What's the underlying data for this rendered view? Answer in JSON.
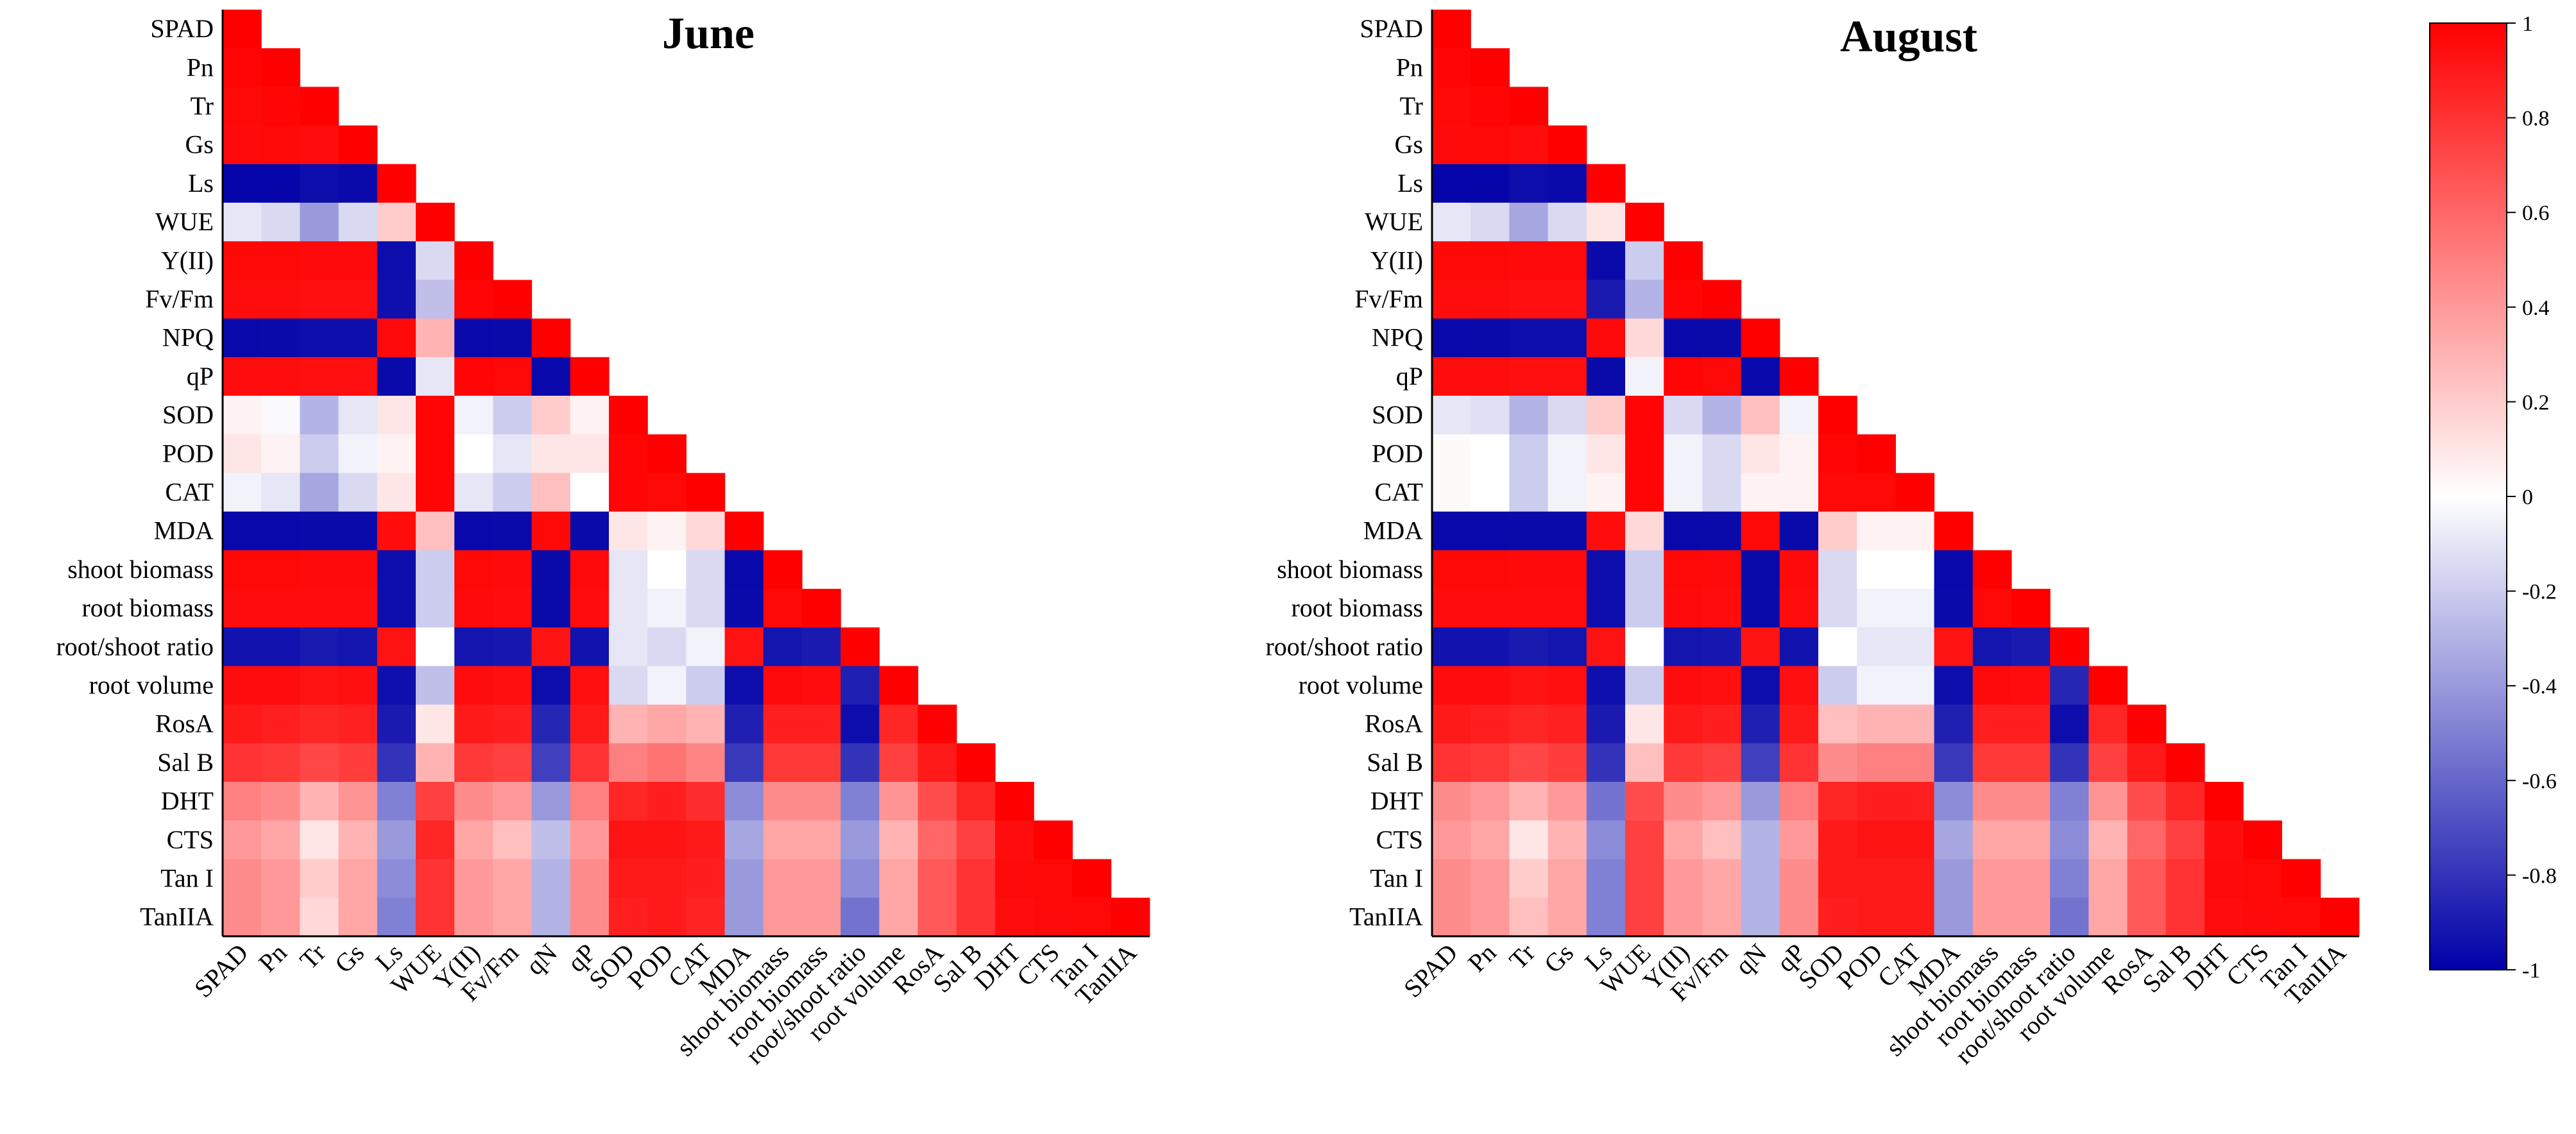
{
  "chart_data": [
    {
      "type": "heatmap",
      "title": "June",
      "shape": "lower-triangle",
      "row_labels": [
        "SPAD",
        "Pn",
        "Tr",
        "Gs",
        "Ls",
        "WUE",
        "Y(II)",
        "Fv/Fm",
        "NPQ",
        "qP",
        "SOD",
        "POD",
        "CAT",
        "MDA",
        "shoot biomass",
        "root biomass",
        "root/shoot ratio",
        "root volume",
        "RosA",
        "Sal B",
        "DHT",
        "CTS",
        "Tan I",
        "TanIIA"
      ],
      "column_labels": [
        "SPAD",
        "Pn",
        "Tr",
        "Gs",
        "Ls",
        "WUE",
        "Y(II)",
        "Fv/Fm",
        "qN",
        "qP",
        "SOD",
        "POD",
        "CAT",
        "MDA",
        "shoot biomass",
        "root biomass",
        "root/shoot ratio",
        "root volume",
        "RosA",
        "Sal B",
        "DHT",
        "CTS",
        "Tan I",
        "TanIIA"
      ],
      "value_range": [
        -1,
        1
      ],
      "values": [
        [
          1
        ],
        [
          0.98,
          1
        ],
        [
          0.97,
          0.98,
          1
        ],
        [
          0.96,
          0.97,
          0.95,
          1
        ],
        [
          -0.98,
          -0.98,
          -0.95,
          -0.96,
          1
        ],
        [
          -0.1,
          -0.15,
          -0.4,
          -0.15,
          0.2,
          1
        ],
        [
          0.97,
          0.97,
          0.96,
          0.96,
          -0.95,
          -0.15,
          1
        ],
        [
          0.95,
          0.95,
          0.94,
          0.94,
          -0.94,
          -0.25,
          0.98,
          1
        ],
        [
          -0.97,
          -0.96,
          -0.95,
          -0.95,
          0.96,
          0.3,
          -0.97,
          -0.96,
          1
        ],
        [
          0.95,
          0.95,
          0.94,
          0.94,
          -0.96,
          -0.1,
          0.98,
          0.97,
          -0.97,
          1
        ],
        [
          0.05,
          -0.02,
          -0.3,
          -0.1,
          0.1,
          0.98,
          -0.05,
          -0.2,
          0.2,
          0.05,
          1
        ],
        [
          0.1,
          0.05,
          -0.2,
          -0.05,
          0.05,
          0.98,
          0.0,
          -0.1,
          0.1,
          0.1,
          0.98,
          1
        ],
        [
          -0.05,
          -0.1,
          -0.35,
          -0.15,
          0.1,
          0.98,
          -0.1,
          -0.2,
          0.25,
          0.0,
          0.98,
          0.97,
          1
        ],
        [
          -0.97,
          -0.97,
          -0.96,
          -0.96,
          0.95,
          0.25,
          -0.97,
          -0.96,
          0.97,
          -0.96,
          0.1,
          0.05,
          0.15,
          1
        ],
        [
          0.97,
          0.97,
          0.96,
          0.96,
          -0.95,
          -0.2,
          0.97,
          0.96,
          -0.96,
          0.96,
          -0.1,
          0.0,
          -0.15,
          -0.97,
          1
        ],
        [
          0.95,
          0.95,
          0.95,
          0.95,
          -0.95,
          -0.2,
          0.96,
          0.95,
          -0.96,
          0.95,
          -0.1,
          -0.05,
          -0.15,
          -0.96,
          0.97,
          1
        ],
        [
          -0.93,
          -0.93,
          -0.9,
          -0.92,
          0.93,
          0.0,
          -0.92,
          -0.91,
          0.92,
          -0.93,
          -0.1,
          -0.15,
          -0.05,
          0.93,
          -0.92,
          -0.9,
          1
        ],
        [
          0.95,
          0.95,
          0.93,
          0.94,
          -0.94,
          -0.25,
          0.95,
          0.94,
          -0.95,
          0.94,
          -0.15,
          -0.05,
          -0.2,
          -0.95,
          0.96,
          0.95,
          -0.88,
          1
        ],
        [
          0.9,
          0.88,
          0.85,
          0.87,
          -0.9,
          0.1,
          0.9,
          0.88,
          -0.85,
          0.9,
          0.3,
          0.35,
          0.3,
          -0.88,
          0.88,
          0.88,
          -0.95,
          0.85,
          1
        ],
        [
          0.8,
          0.78,
          0.72,
          0.76,
          -0.8,
          0.3,
          0.78,
          0.75,
          -0.75,
          0.8,
          0.5,
          0.55,
          0.48,
          -0.78,
          0.78,
          0.78,
          -0.8,
          0.75,
          0.9,
          1
        ],
        [
          0.5,
          0.45,
          0.3,
          0.42,
          -0.5,
          0.75,
          0.45,
          0.4,
          -0.4,
          0.5,
          0.85,
          0.88,
          0.82,
          -0.45,
          0.45,
          0.45,
          -0.5,
          0.42,
          0.7,
          0.85,
          1
        ],
        [
          0.4,
          0.35,
          0.1,
          0.3,
          -0.4,
          0.85,
          0.35,
          0.25,
          -0.25,
          0.4,
          0.92,
          0.92,
          0.9,
          -0.35,
          0.35,
          0.35,
          -0.4,
          0.3,
          0.6,
          0.75,
          0.95,
          1
        ],
        [
          0.45,
          0.4,
          0.2,
          0.35,
          -0.45,
          0.8,
          0.4,
          0.35,
          -0.3,
          0.45,
          0.9,
          0.9,
          0.88,
          -0.4,
          0.4,
          0.4,
          -0.45,
          0.35,
          0.65,
          0.8,
          0.96,
          0.97,
          1
        ],
        [
          0.45,
          0.4,
          0.15,
          0.35,
          -0.5,
          0.8,
          0.4,
          0.35,
          -0.3,
          0.45,
          0.88,
          0.9,
          0.86,
          -0.4,
          0.4,
          0.4,
          -0.55,
          0.35,
          0.65,
          0.8,
          0.95,
          0.96,
          0.97,
          1
        ]
      ]
    },
    {
      "type": "heatmap",
      "title": "August",
      "shape": "lower-triangle",
      "row_labels": [
        "SPAD",
        "Pn",
        "Tr",
        "Gs",
        "Ls",
        "WUE",
        "Y(II)",
        "Fv/Fm",
        "NPQ",
        "qP",
        "SOD",
        "POD",
        "CAT",
        "MDA",
        "shoot biomass",
        "root biomass",
        "root/shoot ratio",
        "root volume",
        "RosA",
        "Sal B",
        "DHT",
        "CTS",
        "Tan I",
        "TanIIA"
      ],
      "column_labels": [
        "SPAD",
        "Pn",
        "Tr",
        "Gs",
        "Ls",
        "WUE",
        "Y(II)",
        "Fv/Fm",
        "qN",
        "qP",
        "SOD",
        "POD",
        "CAT",
        "MDA",
        "shoot biomass",
        "root biomass",
        "root/shoot ratio",
        "root volume",
        "RosA",
        "Sal B",
        "DHT",
        "CTS",
        "Tan I",
        "TanIIA"
      ],
      "value_range": [
        -1,
        1
      ],
      "values": [
        [
          1
        ],
        [
          0.98,
          1
        ],
        [
          0.97,
          0.98,
          1
        ],
        [
          0.96,
          0.97,
          0.95,
          1
        ],
        [
          -0.98,
          -0.98,
          -0.95,
          -0.96,
          1
        ],
        [
          -0.1,
          -0.15,
          -0.35,
          -0.15,
          0.1,
          1
        ],
        [
          0.97,
          0.97,
          0.96,
          0.96,
          -0.96,
          -0.2,
          1
        ],
        [
          0.95,
          0.95,
          0.94,
          0.94,
          -0.9,
          -0.3,
          0.98,
          1
        ],
        [
          -0.97,
          -0.96,
          -0.95,
          -0.95,
          0.96,
          0.15,
          -0.97,
          -0.96,
          1
        ],
        [
          0.95,
          0.95,
          0.94,
          0.94,
          -0.96,
          -0.05,
          0.98,
          0.97,
          -0.97,
          1
        ],
        [
          -0.1,
          -0.12,
          -0.3,
          -0.15,
          0.2,
          0.98,
          -0.15,
          -0.3,
          0.25,
          -0.05,
          1
        ],
        [
          0.02,
          0.0,
          -0.2,
          -0.05,
          0.1,
          0.98,
          -0.05,
          -0.15,
          0.1,
          0.05,
          0.98,
          1
        ],
        [
          0.02,
          0.0,
          -0.2,
          -0.05,
          0.05,
          0.98,
          -0.05,
          -0.15,
          0.05,
          0.05,
          0.97,
          0.97,
          1
        ],
        [
          -0.97,
          -0.97,
          -0.96,
          -0.96,
          0.95,
          0.15,
          -0.97,
          -0.96,
          0.97,
          -0.96,
          0.2,
          0.05,
          0.05,
          1
        ],
        [
          0.97,
          0.97,
          0.96,
          0.96,
          -0.95,
          -0.2,
          0.97,
          0.96,
          -0.96,
          0.96,
          -0.15,
          0.0,
          0.0,
          -0.97,
          1
        ],
        [
          0.95,
          0.95,
          0.95,
          0.95,
          -0.95,
          -0.2,
          0.96,
          0.95,
          -0.96,
          0.95,
          -0.15,
          -0.05,
          -0.05,
          -0.96,
          0.97,
          1
        ],
        [
          -0.93,
          -0.93,
          -0.9,
          -0.92,
          0.93,
          0.0,
          -0.92,
          -0.91,
          0.92,
          -0.93,
          0.0,
          -0.1,
          -0.1,
          0.93,
          -0.92,
          -0.9,
          1
        ],
        [
          0.95,
          0.95,
          0.93,
          0.94,
          -0.94,
          -0.2,
          0.95,
          0.94,
          -0.95,
          0.94,
          -0.2,
          -0.05,
          -0.05,
          -0.95,
          0.96,
          0.95,
          -0.85,
          1
        ],
        [
          0.9,
          0.88,
          0.85,
          0.87,
          -0.9,
          0.1,
          0.9,
          0.88,
          -0.88,
          0.9,
          0.25,
          0.3,
          0.3,
          -0.88,
          0.88,
          0.88,
          -0.95,
          0.85,
          1
        ],
        [
          0.8,
          0.78,
          0.72,
          0.76,
          -0.8,
          0.25,
          0.78,
          0.75,
          -0.75,
          0.8,
          0.45,
          0.5,
          0.5,
          -0.78,
          0.78,
          0.78,
          -0.8,
          0.75,
          0.9,
          1
        ],
        [
          0.45,
          0.4,
          0.3,
          0.4,
          -0.55,
          0.7,
          0.45,
          0.4,
          -0.4,
          0.5,
          0.85,
          0.88,
          0.88,
          -0.45,
          0.45,
          0.45,
          -0.5,
          0.42,
          0.7,
          0.85,
          1
        ],
        [
          0.4,
          0.35,
          0.1,
          0.3,
          -0.45,
          0.75,
          0.35,
          0.25,
          -0.3,
          0.4,
          0.9,
          0.92,
          0.92,
          -0.35,
          0.35,
          0.35,
          -0.45,
          0.3,
          0.6,
          0.75,
          0.95,
          1
        ],
        [
          0.45,
          0.4,
          0.2,
          0.35,
          -0.5,
          0.75,
          0.4,
          0.35,
          -0.3,
          0.45,
          0.9,
          0.9,
          0.9,
          -0.4,
          0.4,
          0.4,
          -0.5,
          0.35,
          0.65,
          0.8,
          0.96,
          0.97,
          1
        ],
        [
          0.45,
          0.4,
          0.25,
          0.35,
          -0.5,
          0.75,
          0.4,
          0.35,
          -0.3,
          0.45,
          0.88,
          0.9,
          0.9,
          -0.4,
          0.4,
          0.4,
          -0.55,
          0.35,
          0.65,
          0.8,
          0.95,
          0.96,
          0.97,
          1
        ]
      ]
    }
  ],
  "colorbar": {
    "min": -1,
    "max": 1,
    "ticks": [
      "1",
      "0.8",
      "0.6",
      "0.4",
      "0.2",
      "0",
      "-0.2",
      "-0.4",
      "-0.6",
      "-0.8",
      "-1"
    ],
    "tick_values": [
      1,
      0.8,
      0.6,
      0.4,
      0.2,
      0,
      -0.2,
      -0.4,
      -0.6,
      -0.8,
      -1
    ],
    "colors": {
      "negative": "#0000a8",
      "zero": "#ffffff",
      "positive": "#ff0000"
    }
  }
}
